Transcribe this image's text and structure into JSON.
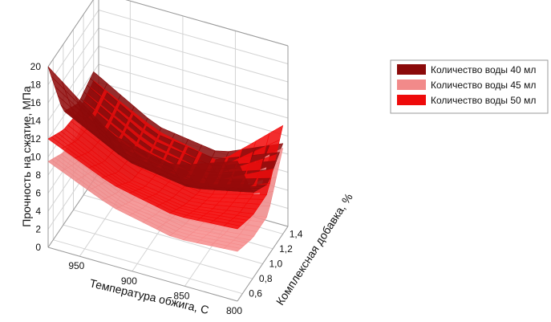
{
  "chart_data": {
    "type": "surface3d",
    "title": "",
    "xlabel": "Температура обжига, С",
    "ylabel": "Комплексная добавка, %",
    "zlabel": "Прочность на сжатие, МПа",
    "x_ticks": [
      "800",
      "850",
      "900",
      "950"
    ],
    "y_ticks": [
      "0,6",
      "0,8",
      "1,0",
      "1,2",
      "1,4"
    ],
    "z_ticks": [
      "0",
      "2",
      "4",
      "6",
      "8",
      "10",
      "12",
      "14",
      "16",
      "18",
      "20"
    ],
    "x_range": [
      800,
      980
    ],
    "y_range": [
      0.5,
      1.5
    ],
    "z_range": [
      0,
      20
    ],
    "grid": true,
    "legend_position": "right",
    "series": [
      {
        "name": "Количество воды 40 мл",
        "color": "#8b0a0a",
        "x": [
          980,
          920,
          860,
          800
        ],
        "y": [
          0.5,
          0.8,
          1.1,
          1.4
        ],
        "z": [
          [
            20.0,
            14.5,
            13.0,
            15.5
          ],
          [
            12.5,
            9.0,
            8.0,
            9.5
          ],
          [
            11.0,
            7.0,
            6.0,
            8.0
          ],
          [
            12.0,
            8.0,
            7.0,
            10.0
          ]
        ]
      },
      {
        "name": "Количество воды 45 мл",
        "color": "#f28a8a",
        "x": [
          980,
          920,
          860,
          800
        ],
        "y": [
          0.5,
          0.8,
          1.1,
          1.4
        ],
        "z": [
          [
            9.5,
            6.5,
            5.0,
            5.5
          ],
          [
            8.0,
            4.8,
            3.8,
            4.5
          ],
          [
            7.5,
            4.2,
            3.2,
            4.5
          ],
          [
            9.0,
            5.5,
            4.0,
            9.5
          ]
        ]
      },
      {
        "name": "Количество воды 50 мл",
        "color": "#ee0a0a",
        "x": [
          980,
          920,
          860,
          800
        ],
        "y": [
          0.5,
          0.8,
          1.1,
          1.4
        ],
        "z": [
          [
            12.0,
            9.0,
            7.5,
            8.0
          ],
          [
            10.5,
            7.0,
            6.0,
            7.0
          ],
          [
            10.0,
            6.5,
            5.0,
            7.0
          ],
          [
            11.0,
            7.5,
            6.0,
            12.0
          ]
        ]
      }
    ]
  }
}
